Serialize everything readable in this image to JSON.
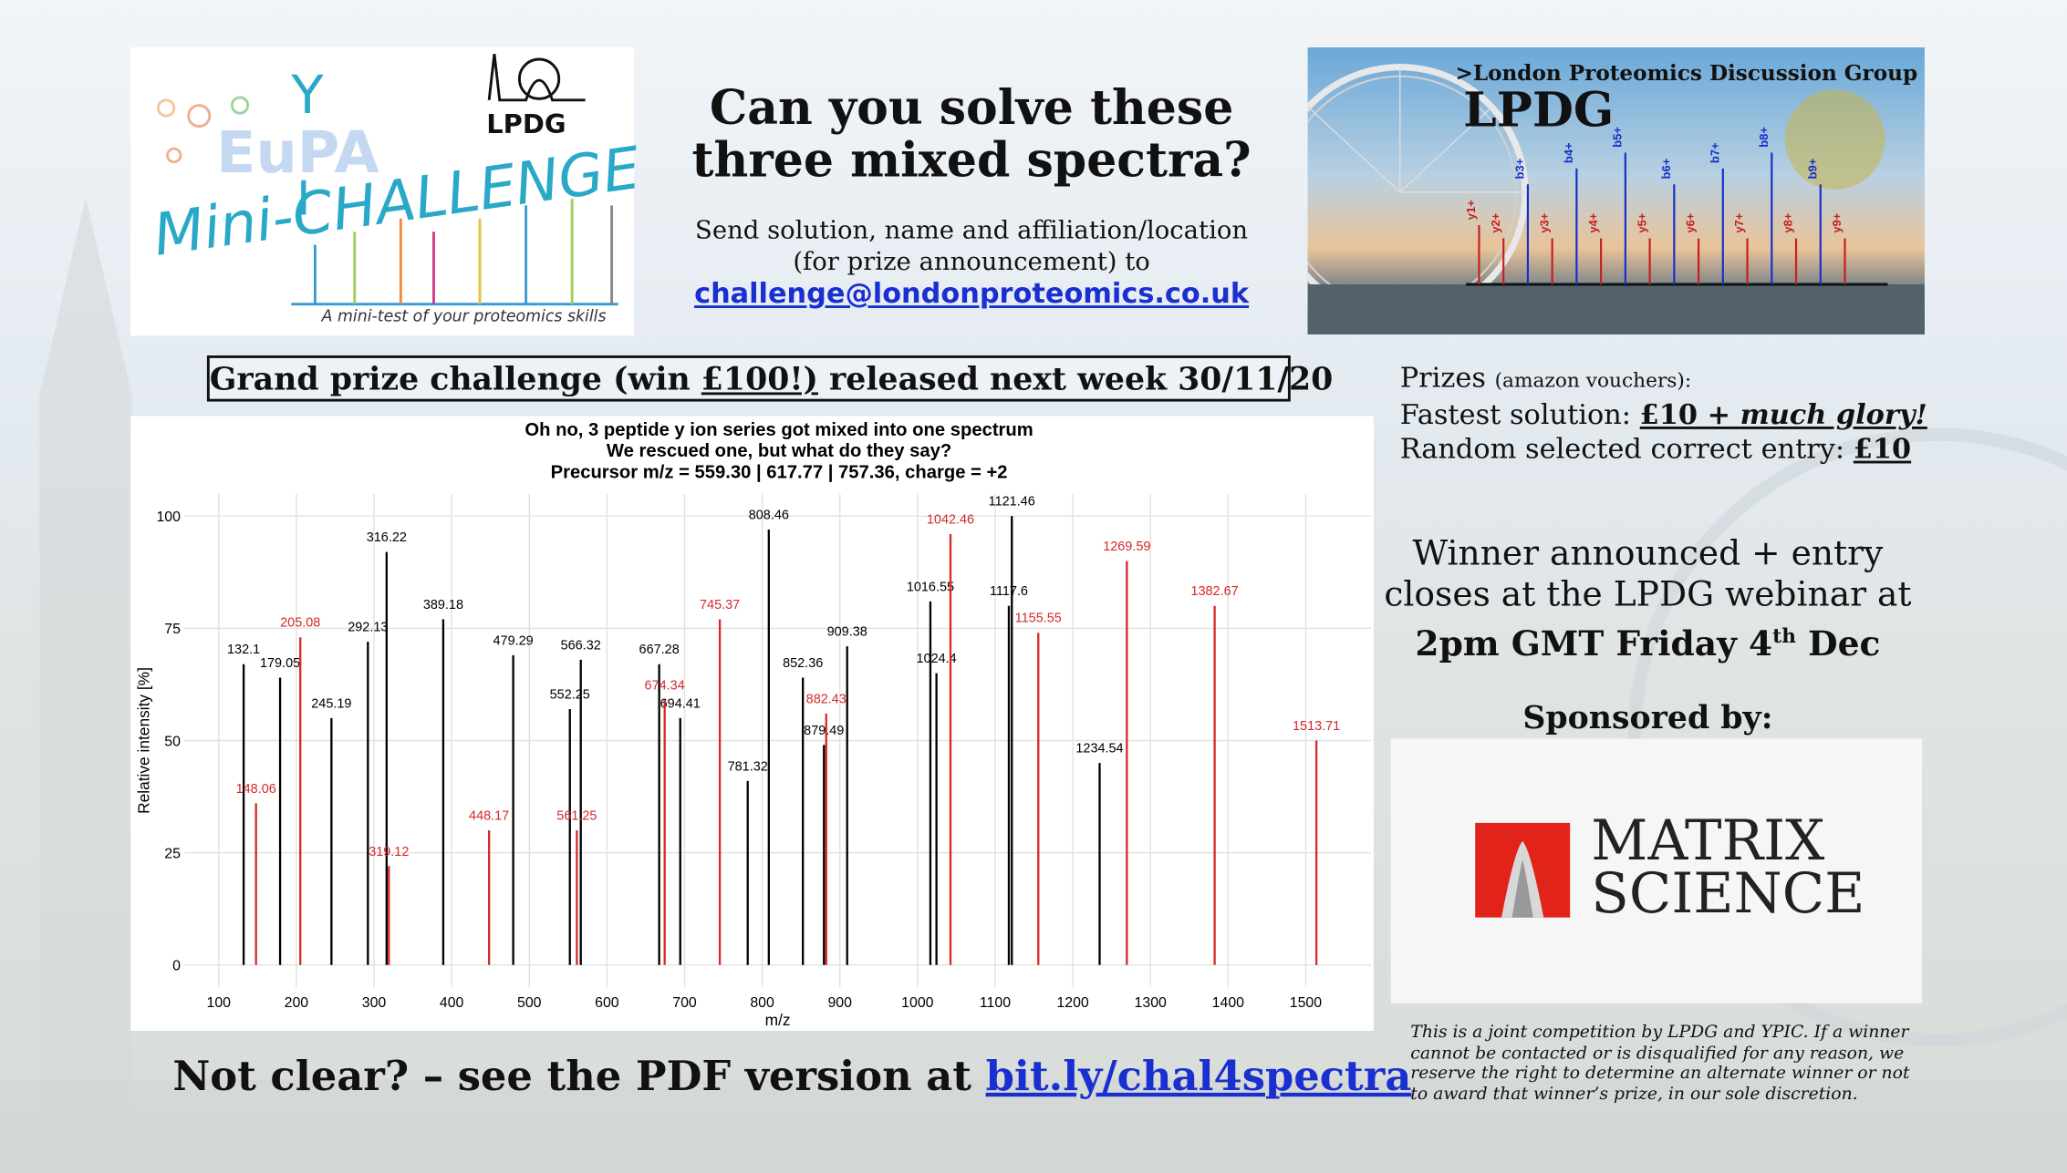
{
  "logo": {
    "ypic_y": "Y",
    "eupa": "EuPA",
    "ypic_i": "I",
    "mini_challenge": "Mini-CHALLENGE",
    "tagline": "A mini-test of your proteomics skills",
    "lpdg": "LPDG"
  },
  "header": {
    "title_line1": "Can you solve these",
    "title_line2": "three mixed spectra?",
    "instructions_line1": "Send solution, name and affiliation/location",
    "instructions_line2": "(for prize announcement) to",
    "email": "challenge@londonproteomics.co.uk"
  },
  "banner": {
    "subtitle": ">London Proteomics Discussion Group",
    "title": "LPDG",
    "ion_labels": [
      "y1+",
      "y2+",
      "b3+",
      "y3+",
      "b4+",
      "y4+",
      "b5+",
      "y5+",
      "b6+",
      "y6+",
      "b7+",
      "y7+",
      "b8+",
      "y8+",
      "b9+",
      "y9+"
    ]
  },
  "grand_prize": {
    "before": "Grand prize challenge (win ",
    "amount": "£100!)",
    "after": " released next week 30/11/20"
  },
  "prizes": {
    "label": "Prizes",
    "note": "(amazon vouchers):",
    "fastest_label": "Fastest solution: ",
    "fastest_prize": "£10 + ",
    "fastest_glory": "much glory!",
    "random_label": "Random selected correct entry: ",
    "random_prize": "£10"
  },
  "announcement": {
    "line1": "Winner announced + entry",
    "line2": "closes at the LPDG webinar at",
    "line3": "2pm GMT Friday 4",
    "line3_sup": "th",
    "line3_end": " Dec"
  },
  "sponsor": {
    "heading": "Sponsored by:",
    "name_line1": "MATRIX",
    "name_line2": "SCIENCE"
  },
  "disclaimer": [
    "This is a joint competition by LPDG and YPIC. If a winner",
    "cannot be contacted or is disqualified for any reason, we",
    "reserve the right to determine an alternate winner or not",
    "to award that winner’s prize, in our sole discretion."
  ],
  "footer": {
    "text": "Not clear? – see the PDF version at ",
    "link": "bit.ly/chal4spectra"
  },
  "chart_data": {
    "type": "stem",
    "title": [
      "Oh no, 3 peptide y ion series got mixed into one spectrum",
      "We rescued one, but what do they say?",
      "Precursor m/z = 559.30 | 617.77 | 757.36, charge = +2"
    ],
    "x_label": "m/z",
    "y_label": "Relative intensity [%]",
    "xlim": [
      56,
      1584
    ],
    "ylim": [
      -5,
      105
    ],
    "xticks": [
      100,
      200,
      300,
      400,
      500,
      600,
      700,
      800,
      900,
      1000,
      1100,
      1200,
      1300,
      1400,
      1500
    ],
    "yticks": [
      0,
      25,
      50,
      75,
      100
    ],
    "grid": true,
    "series": [
      {
        "color": "#000000",
        "x": [
          132.1,
          179.05,
          245.19,
          292.13,
          316.22,
          389.18,
          479.29,
          552.25,
          566.32,
          667.28,
          694.41,
          781.32,
          808.46,
          852.36,
          879.49,
          909.38,
          1016.55,
          1024.4,
          1117.6,
          1121.46,
          1234.54
        ],
        "values": [
          67,
          64,
          55,
          72,
          92,
          77,
          69,
          57,
          68,
          67,
          55,
          41,
          97,
          64,
          49,
          71,
          81,
          65,
          80,
          100,
          45
        ]
      },
      {
        "color": "#d42a2a",
        "x": [
          148.06,
          205.08,
          319.12,
          448.17,
          561.25,
          674.34,
          745.37,
          882.43,
          1042.46,
          1155.55,
          1269.59,
          1382.67,
          1513.71
        ],
        "values": [
          36,
          73,
          22,
          30,
          30,
          59,
          77,
          56,
          96,
          74,
          90,
          80,
          50
        ]
      }
    ]
  }
}
